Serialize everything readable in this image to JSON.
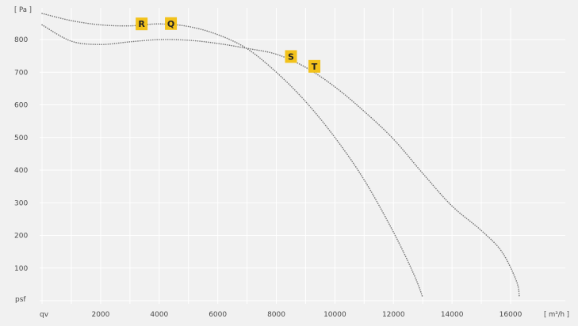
{
  "chart_data": {
    "type": "line",
    "xlim": [
      0,
      17500
    ],
    "ylim": [
      0,
      900
    ],
    "x_ticks": [
      2000,
      4000,
      6000,
      8000,
      10000,
      12000,
      14000,
      16000
    ],
    "y_ticks": [
      100,
      200,
      300,
      400,
      500,
      600,
      700,
      800
    ],
    "x_tick_labels": [
      "2000",
      "4000",
      "6000",
      "8000",
      "10000",
      "12000",
      "14000",
      "16000"
    ],
    "y_tick_labels": [
      "100",
      "200",
      "300",
      "400",
      "500",
      "600",
      "700",
      "800"
    ],
    "x_unit": "[ m³/h ]",
    "y_unit": "[ Pa ]",
    "x_symbol": "qv",
    "y_symbol": "psf",
    "grid": true,
    "series": [
      {
        "points": [
          [
            0,
            880
          ],
          [
            1000,
            858
          ],
          [
            2000,
            845
          ],
          [
            3000,
            842
          ],
          [
            4000,
            848
          ],
          [
            5000,
            840
          ],
          [
            6000,
            815
          ],
          [
            7000,
            772
          ],
          [
            8000,
            700
          ],
          [
            9000,
            610
          ],
          [
            10000,
            500
          ],
          [
            11000,
            370
          ],
          [
            12000,
            210
          ],
          [
            12700,
            80
          ],
          [
            13000,
            10
          ]
        ]
      },
      {
        "points": [
          [
            0,
            845
          ],
          [
            1000,
            795
          ],
          [
            2000,
            785
          ],
          [
            3000,
            793
          ],
          [
            4000,
            800
          ],
          [
            5000,
            798
          ],
          [
            6000,
            788
          ],
          [
            7000,
            773
          ],
          [
            8000,
            755
          ],
          [
            9000,
            715
          ],
          [
            10000,
            655
          ],
          [
            11000,
            580
          ],
          [
            12000,
            495
          ],
          [
            13000,
            390
          ],
          [
            14000,
            290
          ],
          [
            15000,
            215
          ],
          [
            15700,
            150
          ],
          [
            16200,
            60
          ],
          [
            16300,
            10
          ]
        ]
      }
    ],
    "markers": [
      {
        "label": "R",
        "x": 3400,
        "y": 848
      },
      {
        "label": "Q",
        "x": 4400,
        "y": 849
      },
      {
        "label": "S",
        "x": 8500,
        "y": 748
      },
      {
        "label": "T",
        "x": 9300,
        "y": 718
      }
    ],
    "line_color": "#7a7a7a",
    "marker_color": "#f2c21b",
    "grid_color": "#ffffff"
  }
}
